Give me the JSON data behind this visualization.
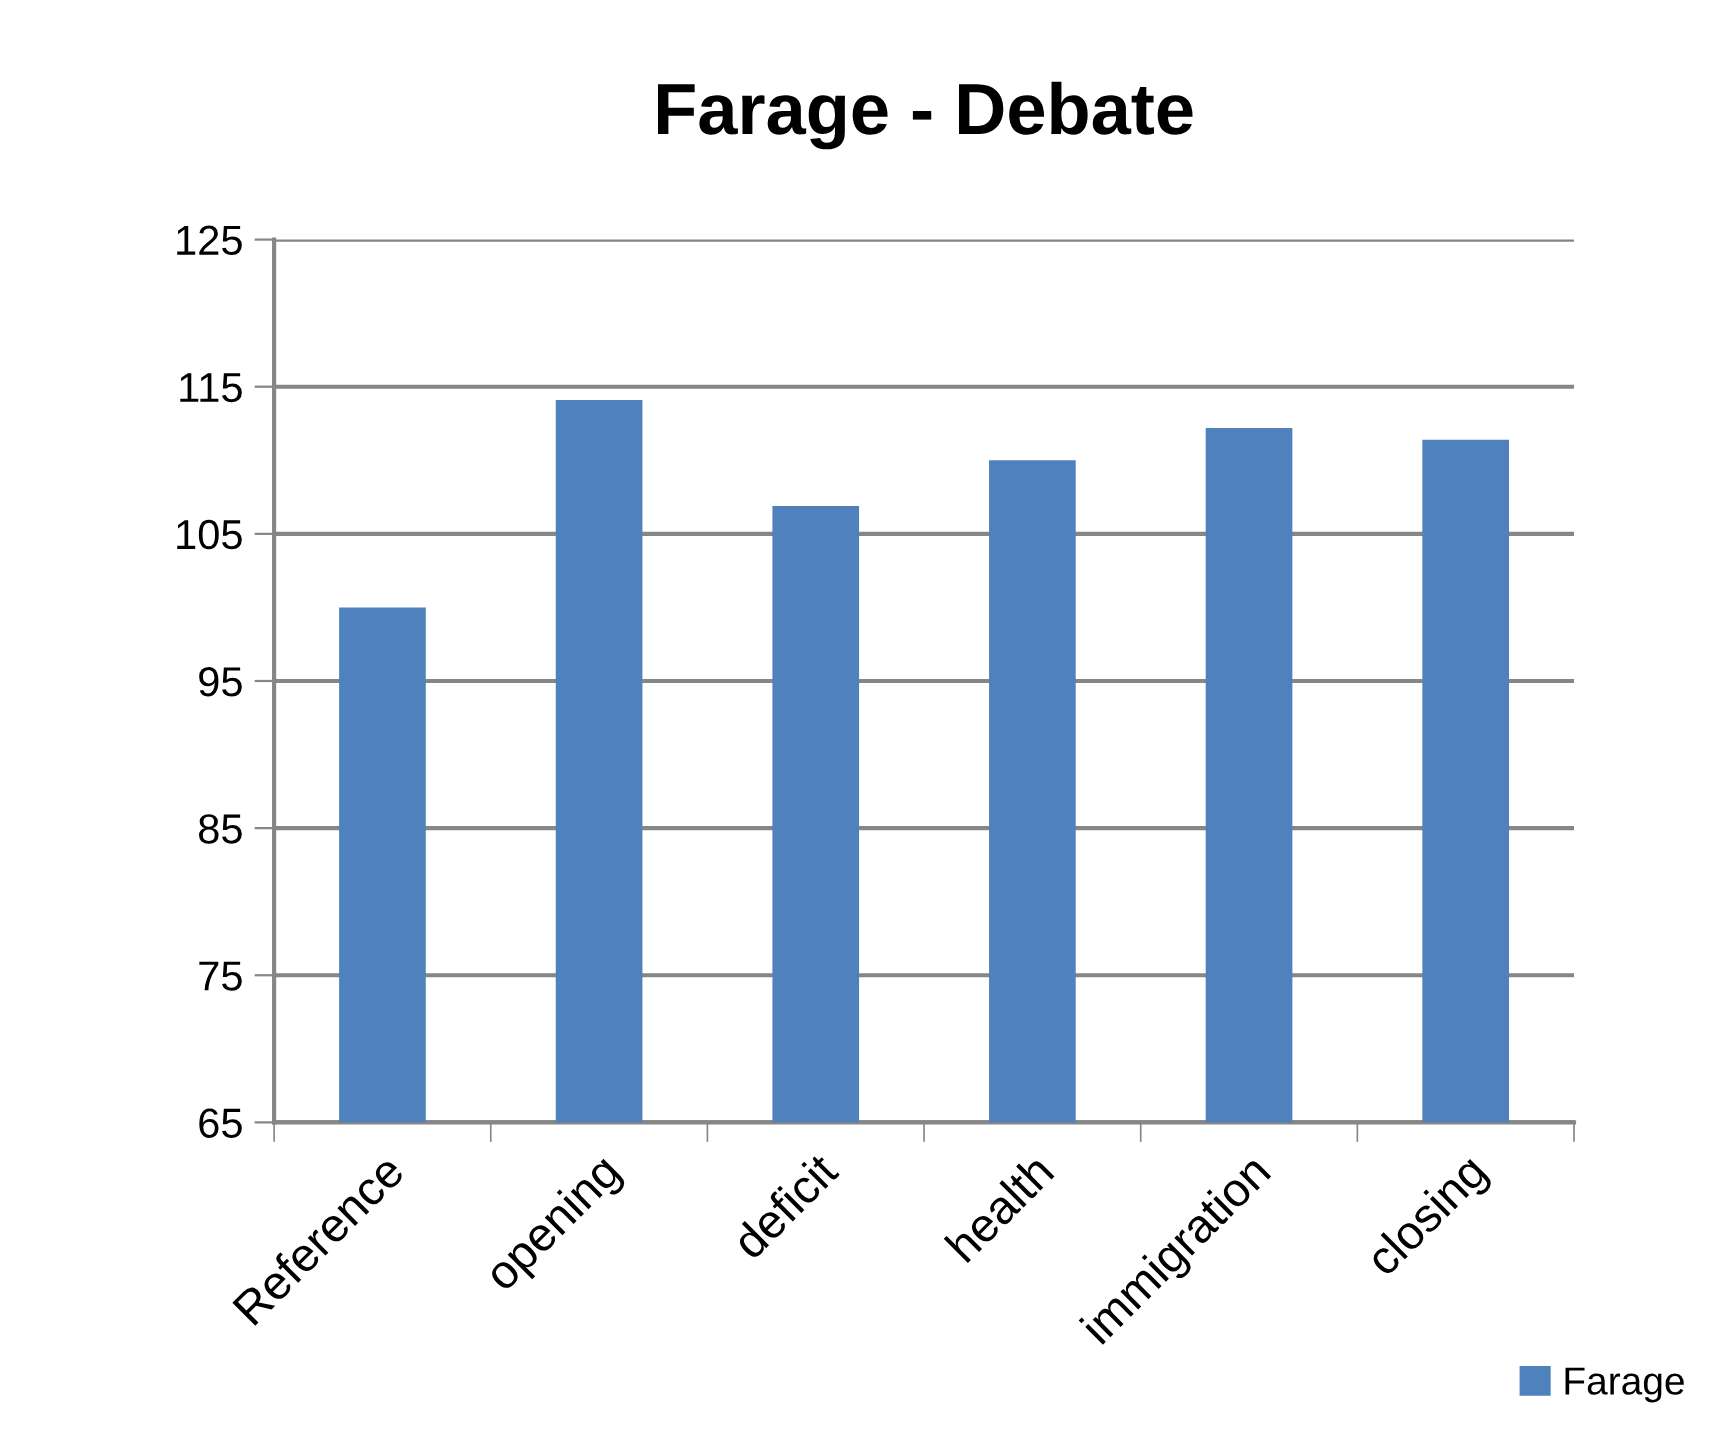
{
  "chart_data": {
    "type": "bar",
    "title": "Farage - Debate",
    "categories": [
      "Reference",
      "opening",
      "deficit",
      "health",
      "immigration",
      "closing"
    ],
    "series": [
      {
        "name": "Farage",
        "color": "#4f81bd",
        "values": [
          100,
          114.1,
          106.9,
          110.0,
          112.2,
          111.4
        ]
      }
    ],
    "ylim": [
      65,
      125
    ],
    "yticks": [
      65,
      75,
      85,
      95,
      105,
      115,
      125
    ],
    "grid": "y",
    "legend": "bottom right"
  }
}
